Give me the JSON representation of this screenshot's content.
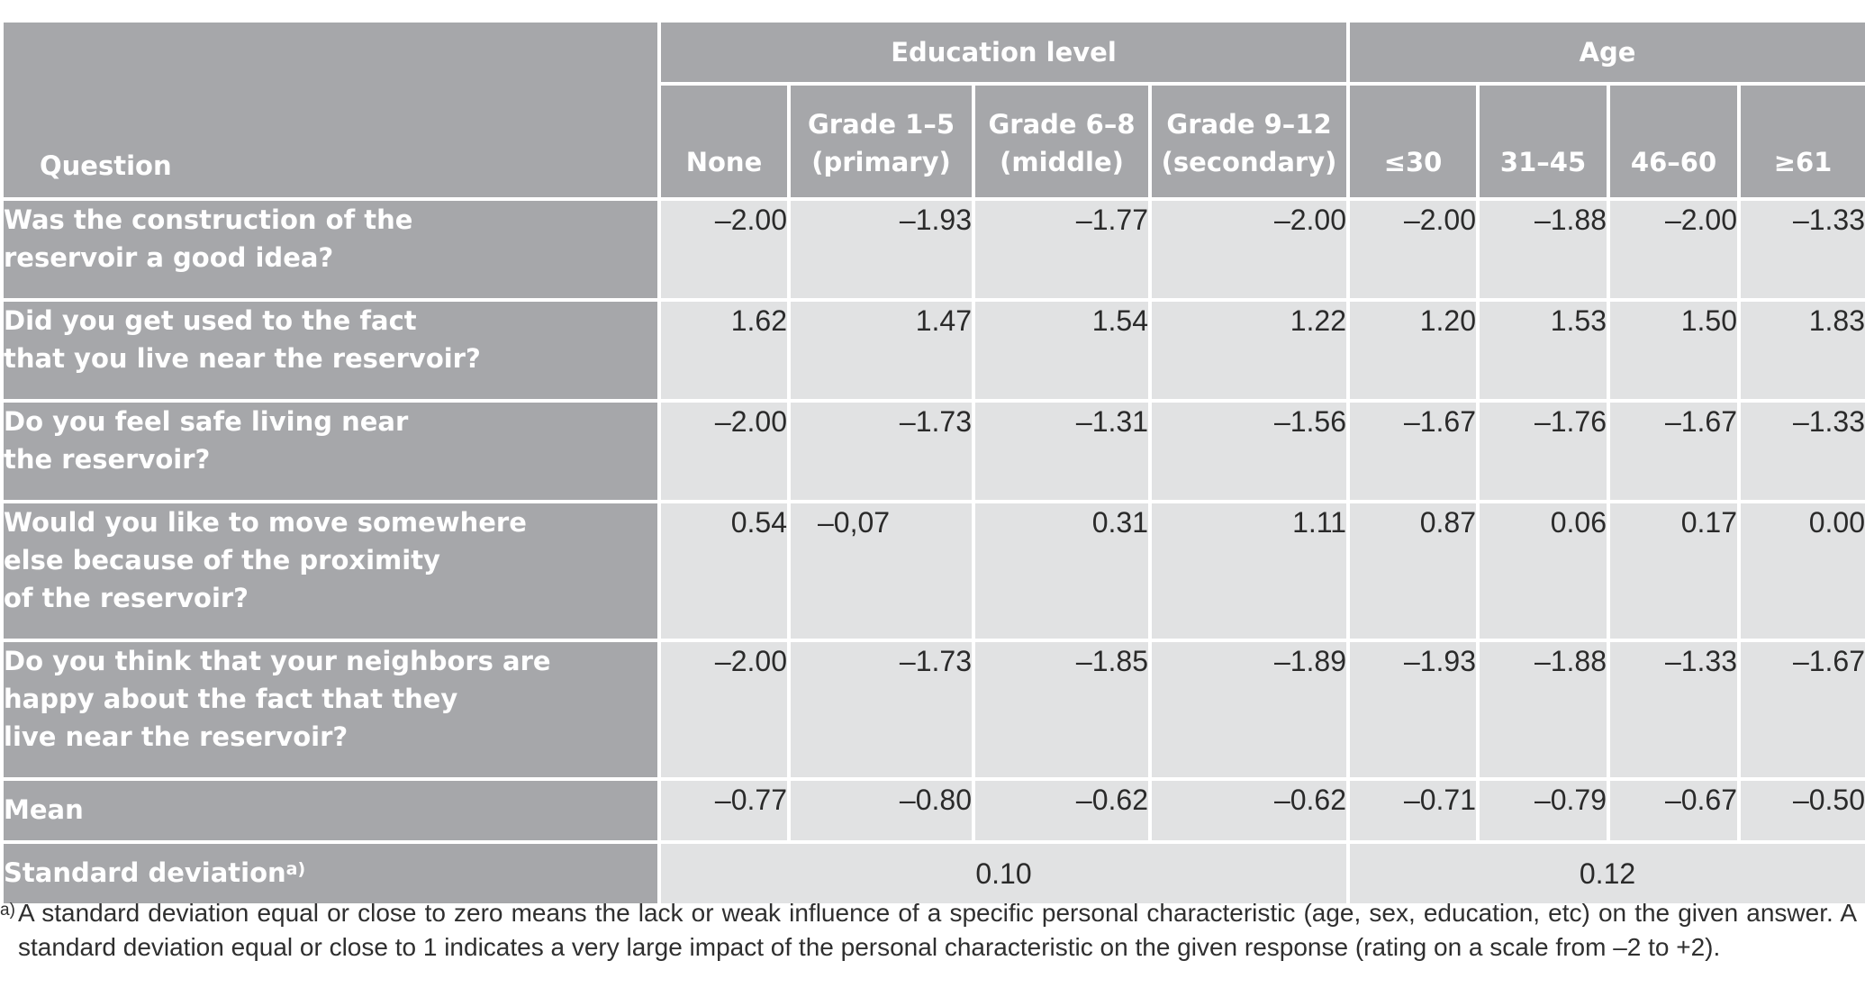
{
  "table": {
    "header": {
      "question_label": "Question",
      "education_group": "Education level",
      "age_group": "Age",
      "education_columns": [
        [
          "None",
          ""
        ],
        [
          "Grade 1–5",
          "(primary)"
        ],
        [
          "Grade 6–8",
          "(middle)"
        ],
        [
          "Grade 9–12",
          "(secondary)"
        ]
      ],
      "age_columns": [
        "≤30",
        "31–45",
        "46–60",
        "≥61"
      ]
    },
    "rows": [
      {
        "question_lines": [
          "Was the construction of the",
          "reservoir a good idea?"
        ],
        "values": [
          "–2.00",
          "–1.93",
          "–1.77",
          "–2.00",
          "–2.00",
          "–1.88",
          "–2.00",
          "–1.33"
        ]
      },
      {
        "question_lines": [
          "Did you get used to the fact",
          "that you live near the reservoir?"
        ],
        "values": [
          "1.62",
          "1.47",
          "1.54",
          "1.22",
          "1.20",
          "1.53",
          "1.50",
          "1.83"
        ]
      },
      {
        "question_lines": [
          "Do you feel safe living near",
          "the reservoir?"
        ],
        "values": [
          "–2.00",
          "–1.73",
          "–1.31",
          "–1.56",
          "–1.67",
          "–1.76",
          "–1.67",
          "–1.33"
        ]
      },
      {
        "question_lines": [
          "Would you like to move somewhere",
          "else because of the proximity",
          "of the reservoir?"
        ],
        "values": [
          "0.54",
          "–0,07",
          "0.31",
          "1.11",
          "0.87",
          "0.06",
          "0.17",
          "0.00"
        ]
      },
      {
        "question_lines": [
          "Do you think that your neighbors are",
          "happy about the fact that they",
          "live near the reservoir?"
        ],
        "values": [
          "–2.00",
          "–1.73",
          "–1.85",
          "–1.89",
          "–1.93",
          "–1.88",
          "–1.33",
          "–1.67"
        ]
      }
    ],
    "mean": {
      "label": "Mean",
      "values": [
        "–0.77",
        "–0.80",
        "–0.62",
        "–0.62",
        "–0.71",
        "–0.79",
        "–0.67",
        "–0.50"
      ]
    },
    "std_dev": {
      "label": "Standard deviation",
      "marker": "a)",
      "education_value": "0.10",
      "age_value": "0.12"
    }
  },
  "footnote": {
    "marker": "a)",
    "text": "A standard deviation equal or close to zero means the lack or weak influence of a specific personal characteristic (age, sex, education, etc) on the given answer. A standard deviation equal or close to 1 indicates a very large impact of the personal characteristic on the given response (rating on a scale from –2 to +2)."
  }
}
